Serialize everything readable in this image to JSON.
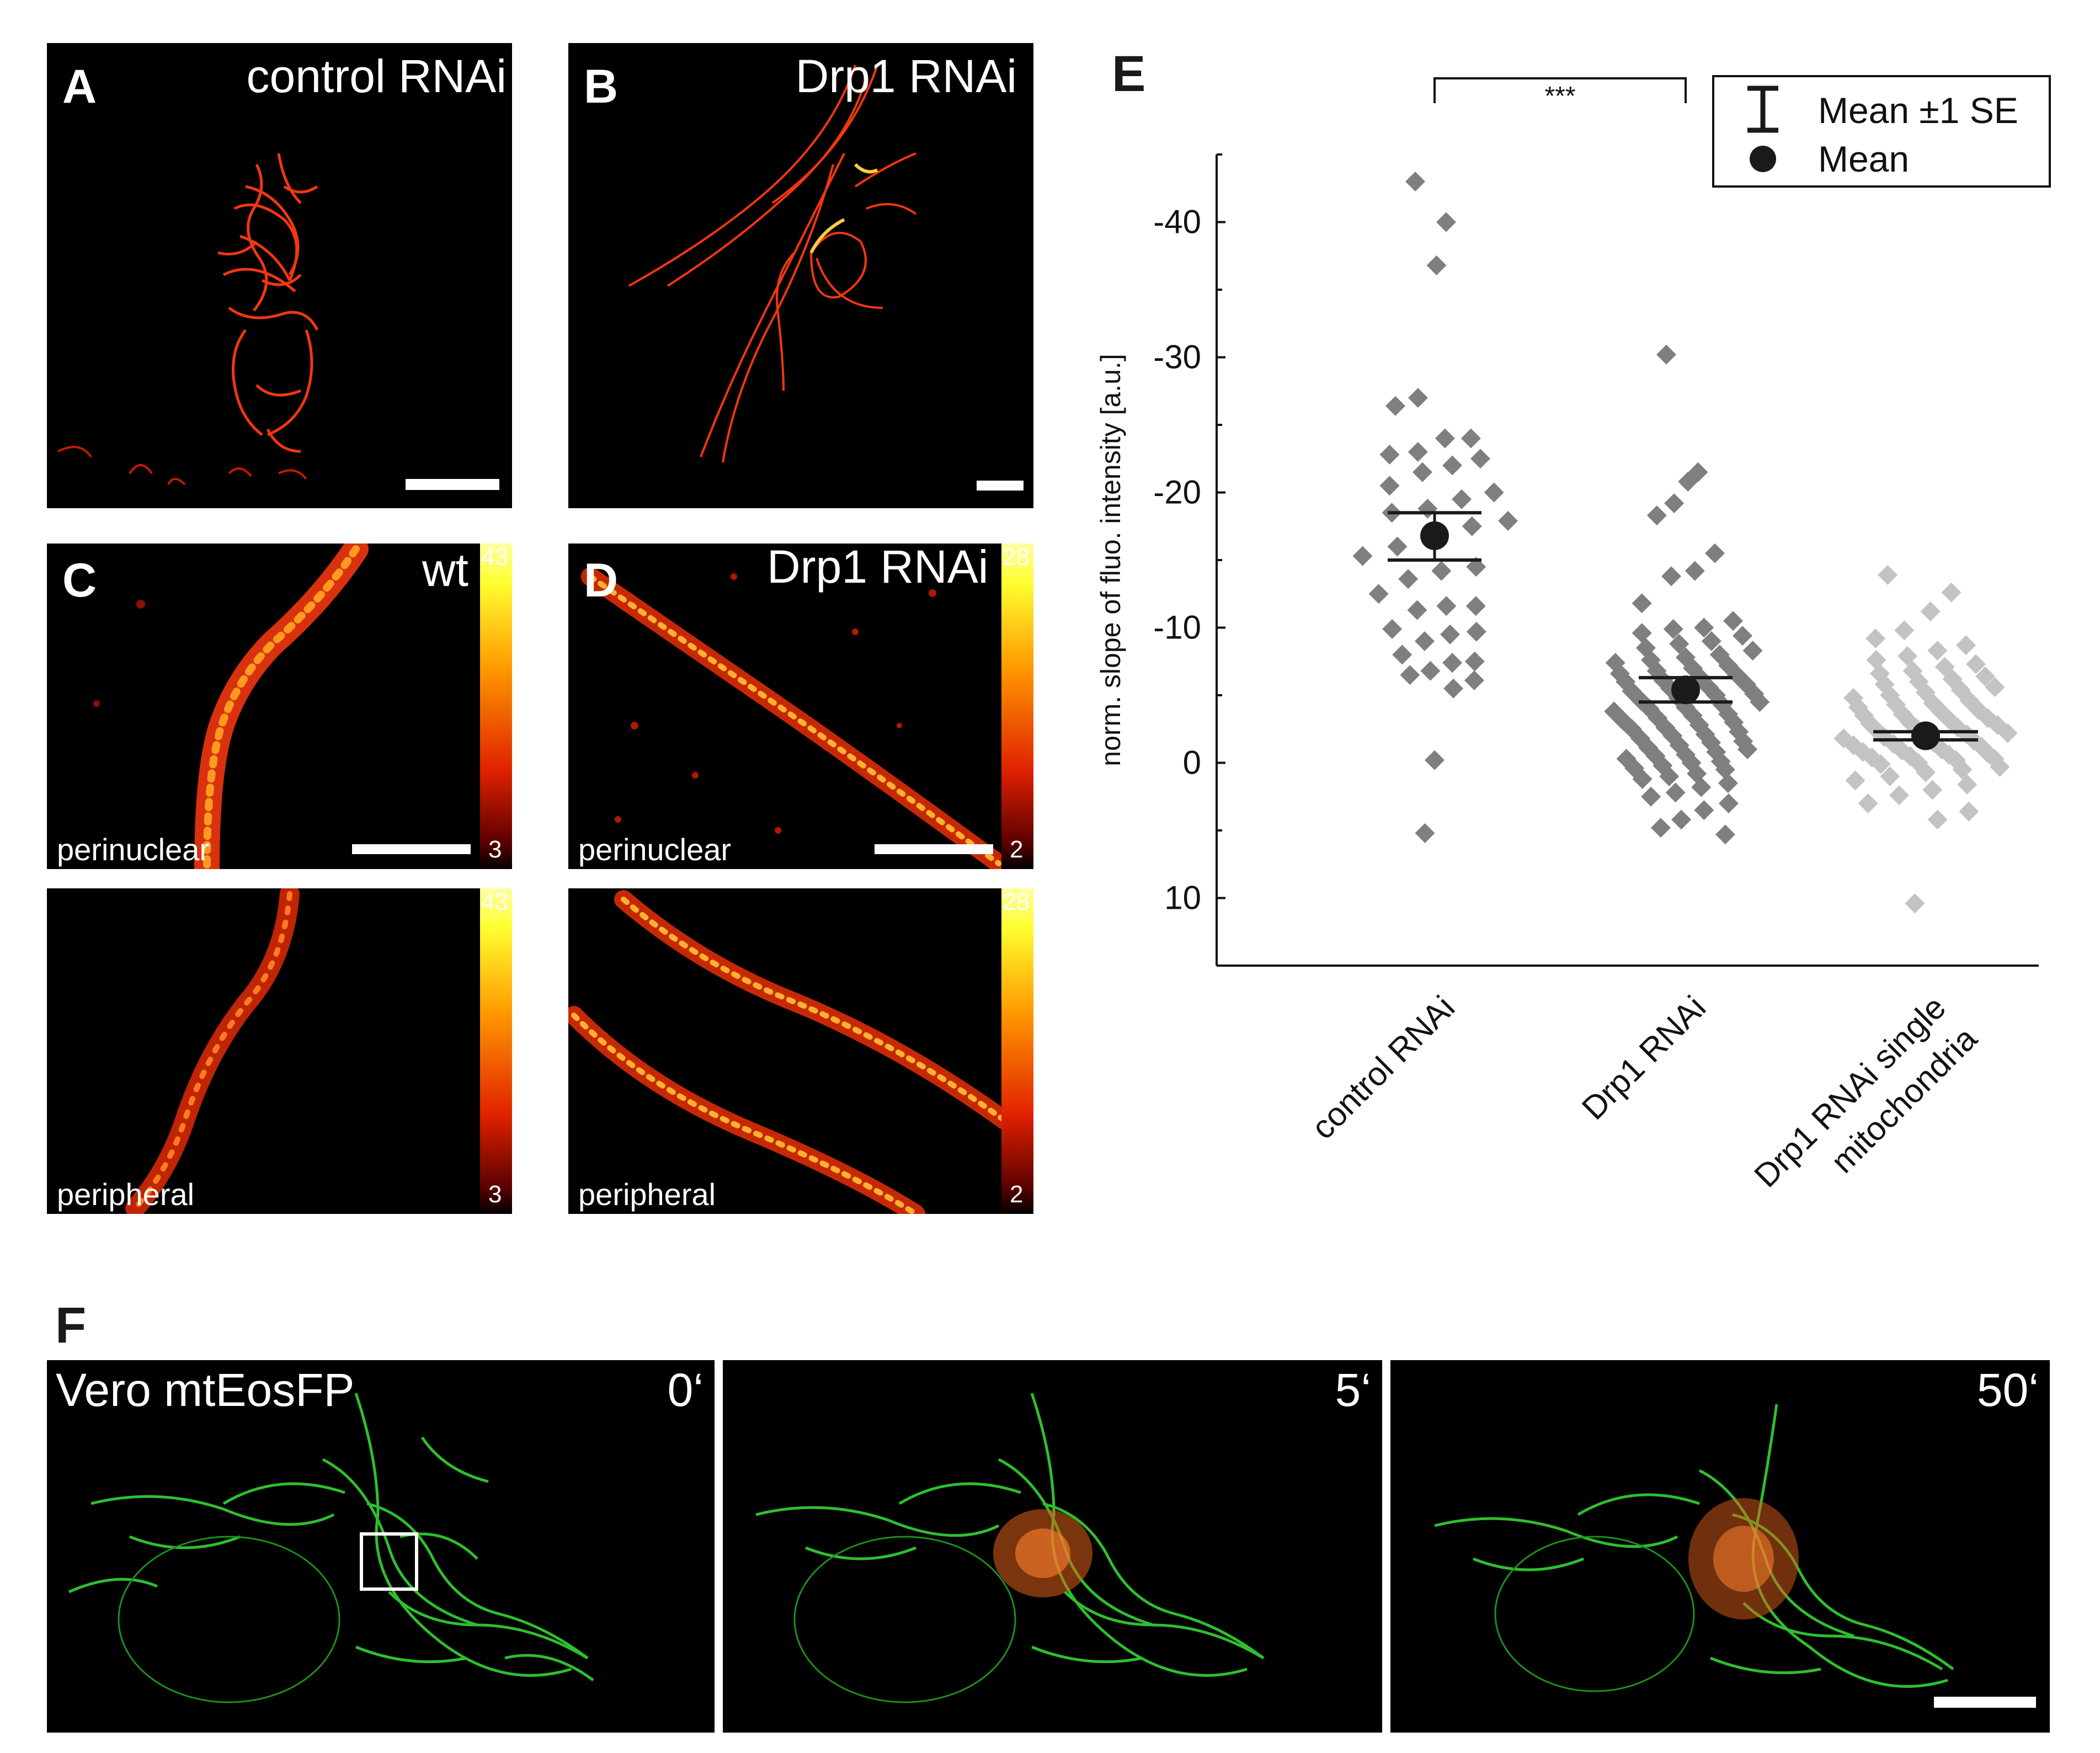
{
  "panels": {
    "A": {
      "letter": "A",
      "title": "control RNAi"
    },
    "B": {
      "letter": "B",
      "title": "Drp1 RNAi"
    },
    "C": {
      "letter": "C",
      "title": "wt",
      "top_label": "perinuclear",
      "bottom_label": "peripheral",
      "cbar_max": "43",
      "cbar_min": "3"
    },
    "D": {
      "letter": "D",
      "title": "Drp1 RNAi",
      "top_label": "perinuclear",
      "bottom_label": "peripheral",
      "cbar_max": "28",
      "cbar_min": "2"
    },
    "E": {
      "letter": "E"
    },
    "F": {
      "letter": "F",
      "title": "Vero mtEosFP",
      "times": [
        "0‘",
        "5‘",
        "50‘"
      ]
    }
  },
  "chart_data": {
    "type": "scatter",
    "title": "",
    "xlabel": "",
    "ylabel": "norm. slope of fluo. intensity [a.u.]",
    "ylim": [
      15,
      -45
    ],
    "y_ticks": [
      "-40",
      "-30",
      "-20",
      "-10",
      "0",
      "10"
    ],
    "y_tick_values": [
      -40,
      -30,
      -20,
      -10,
      0,
      10
    ],
    "categories": [
      "control RNAi",
      "Drp1 RNAi",
      "Drp1 RNAi single mitochondria"
    ],
    "category_labels": [
      [
        "control RNAi"
      ],
      [
        "Drp1 RNAi"
      ],
      [
        "Drp1 RNAi single",
        "mitochondria"
      ]
    ],
    "significance": "***",
    "legend": {
      "position": "top-right",
      "items": [
        "Mean ±1 SE",
        "Mean"
      ]
    },
    "colors": [
      "#7f7f7f",
      "#7f7f7f",
      "#c3c3c3"
    ],
    "series": [
      {
        "category": "control RNAi",
        "mean": -16.8,
        "se_upper": -18.5,
        "se_lower": -15.0,
        "points": [
          -43,
          -40,
          -36.8,
          -27,
          -26.4,
          -24,
          -24,
          -23,
          -22.8,
          -22.5,
          -22,
          -21.5,
          -20.5,
          -20,
          -19.5,
          -18.8,
          -18.5,
          -17.9,
          -17.5,
          -16.8,
          -16,
          -15.3,
          -14.5,
          -14.2,
          -13.6,
          -12.5,
          -11.6,
          -11.6,
          -11.3,
          -9.9,
          -9.7,
          -9.5,
          -9,
          -8,
          -7.5,
          -7.4,
          -6.8,
          -6.5,
          -6.1,
          -5.5,
          -0.2,
          5.2
        ]
      },
      {
        "category": "Drp1 RNAi",
        "mean": -5.4,
        "se_upper": -6.3,
        "se_lower": -4.5,
        "points": [
          -30.2,
          -21.5,
          -20.8,
          -19.2,
          -18.3,
          -15.5,
          -14.2,
          -13.8,
          -11.8,
          -10.5,
          -10,
          -9.9,
          -9.6,
          -9.4,
          -9,
          -8.8,
          -8.5,
          -8.3,
          -8,
          -7.8,
          -7.6,
          -7.4,
          -7.2,
          -7,
          -6.8,
          -6.6,
          -6.5,
          -6.3,
          -6.1,
          -6,
          -5.8,
          -5.6,
          -5.5,
          -5.3,
          -5.1,
          -5,
          -4.8,
          -4.6,
          -4.5,
          -4.3,
          -4.1,
          -4,
          -3.8,
          -3.6,
          -3.5,
          -3.3,
          -3.1,
          -3,
          -2.8,
          -2.6,
          -2.5,
          -2.3,
          -2.1,
          -2,
          -1.8,
          -1.6,
          -1.5,
          -1.3,
          -1.1,
          -1,
          -0.8,
          -0.6,
          -0.5,
          -0.3,
          -0.1,
          0,
          0.2,
          0.4,
          0.5,
          0.8,
          1,
          1.2,
          1.5,
          1.8,
          2.2,
          2.5,
          3,
          3.5,
          4.2,
          4.8,
          5.3
        ]
      },
      {
        "category": "Drp1 RNAi single mitochondria",
        "mean": -2.0,
        "se_upper": -2.3,
        "se_lower": -1.7,
        "points": [
          -13.9,
          -12.6,
          -11.2,
          -9.8,
          -9.2,
          -8.7,
          -8.3,
          -7.9,
          -7.6,
          -7.3,
          -7.1,
          -6.8,
          -6.6,
          -6.4,
          -6.2,
          -6,
          -5.8,
          -5.6,
          -5.4,
          -5.2,
          -5,
          -4.8,
          -4.6,
          -4.4,
          -4.3,
          -4.1,
          -3.9,
          -3.8,
          -3.6,
          -3.5,
          -3.3,
          -3.2,
          -3,
          -2.9,
          -2.8,
          -2.6,
          -2.5,
          -2.4,
          -2.2,
          -2.1,
          -2,
          -1.9,
          -1.8,
          -1.6,
          -1.5,
          -1.4,
          -1.3,
          -1.2,
          -1,
          -0.9,
          -0.8,
          -0.7,
          -0.6,
          -0.5,
          -0.4,
          -0.3,
          -0.2,
          0,
          0.1,
          0.3,
          0.5,
          0.7,
          1,
          1.3,
          1.6,
          2,
          2.4,
          3,
          3.6,
          4.2,
          10.4
        ]
      }
    ]
  }
}
